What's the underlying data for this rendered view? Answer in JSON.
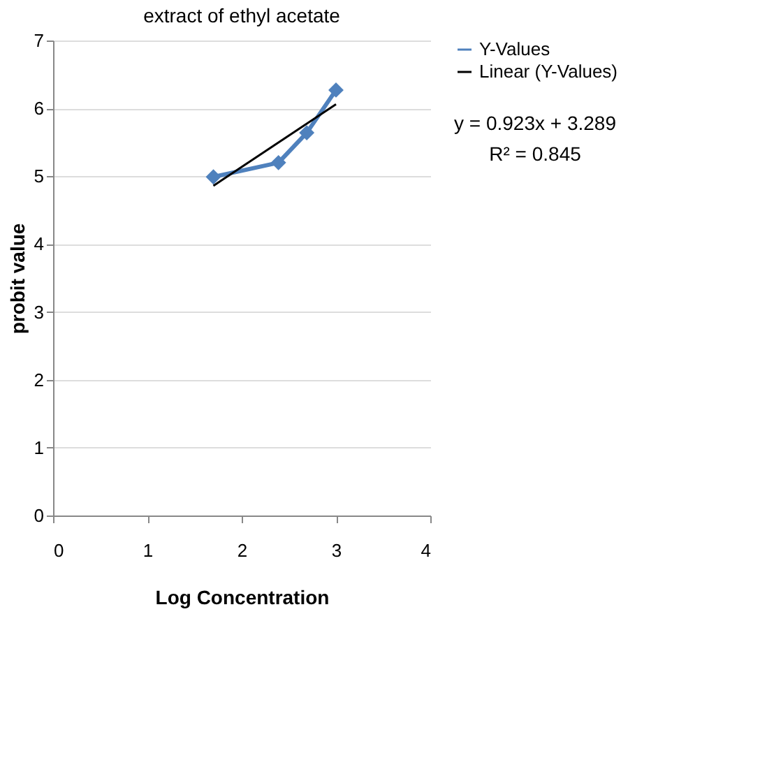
{
  "chart_data": {
    "type": "line",
    "title": "extract of ethyl acetate",
    "xlabel": "Log Concentration",
    "ylabel": "probit value",
    "xlim": [
      0,
      4
    ],
    "xticks": [
      0,
      1,
      2,
      3,
      4
    ],
    "ylim": [
      0,
      7
    ],
    "yticks": [
      0,
      1,
      2,
      3,
      4,
      5,
      6,
      7
    ],
    "grid": "y",
    "legend": "right",
    "marker": "diamond",
    "line_style": "solid",
    "series": [
      {
        "name": "Y-Values",
        "color": "#4f81bd",
        "x": [
          1.7,
          2.39,
          2.69,
          3.0
        ],
        "values": [
          4.99,
          5.2,
          5.64,
          6.27
        ]
      },
      {
        "name": "Linear (Y-Values)",
        "type": "line",
        "color": "#000000",
        "marker": "none",
        "x": [
          1.7,
          3.0
        ],
        "values": [
          4.86,
          6.06
        ]
      }
    ],
    "annotations": [
      "y = 0.923x + 3.289",
      "R² = 0.845"
    ]
  }
}
